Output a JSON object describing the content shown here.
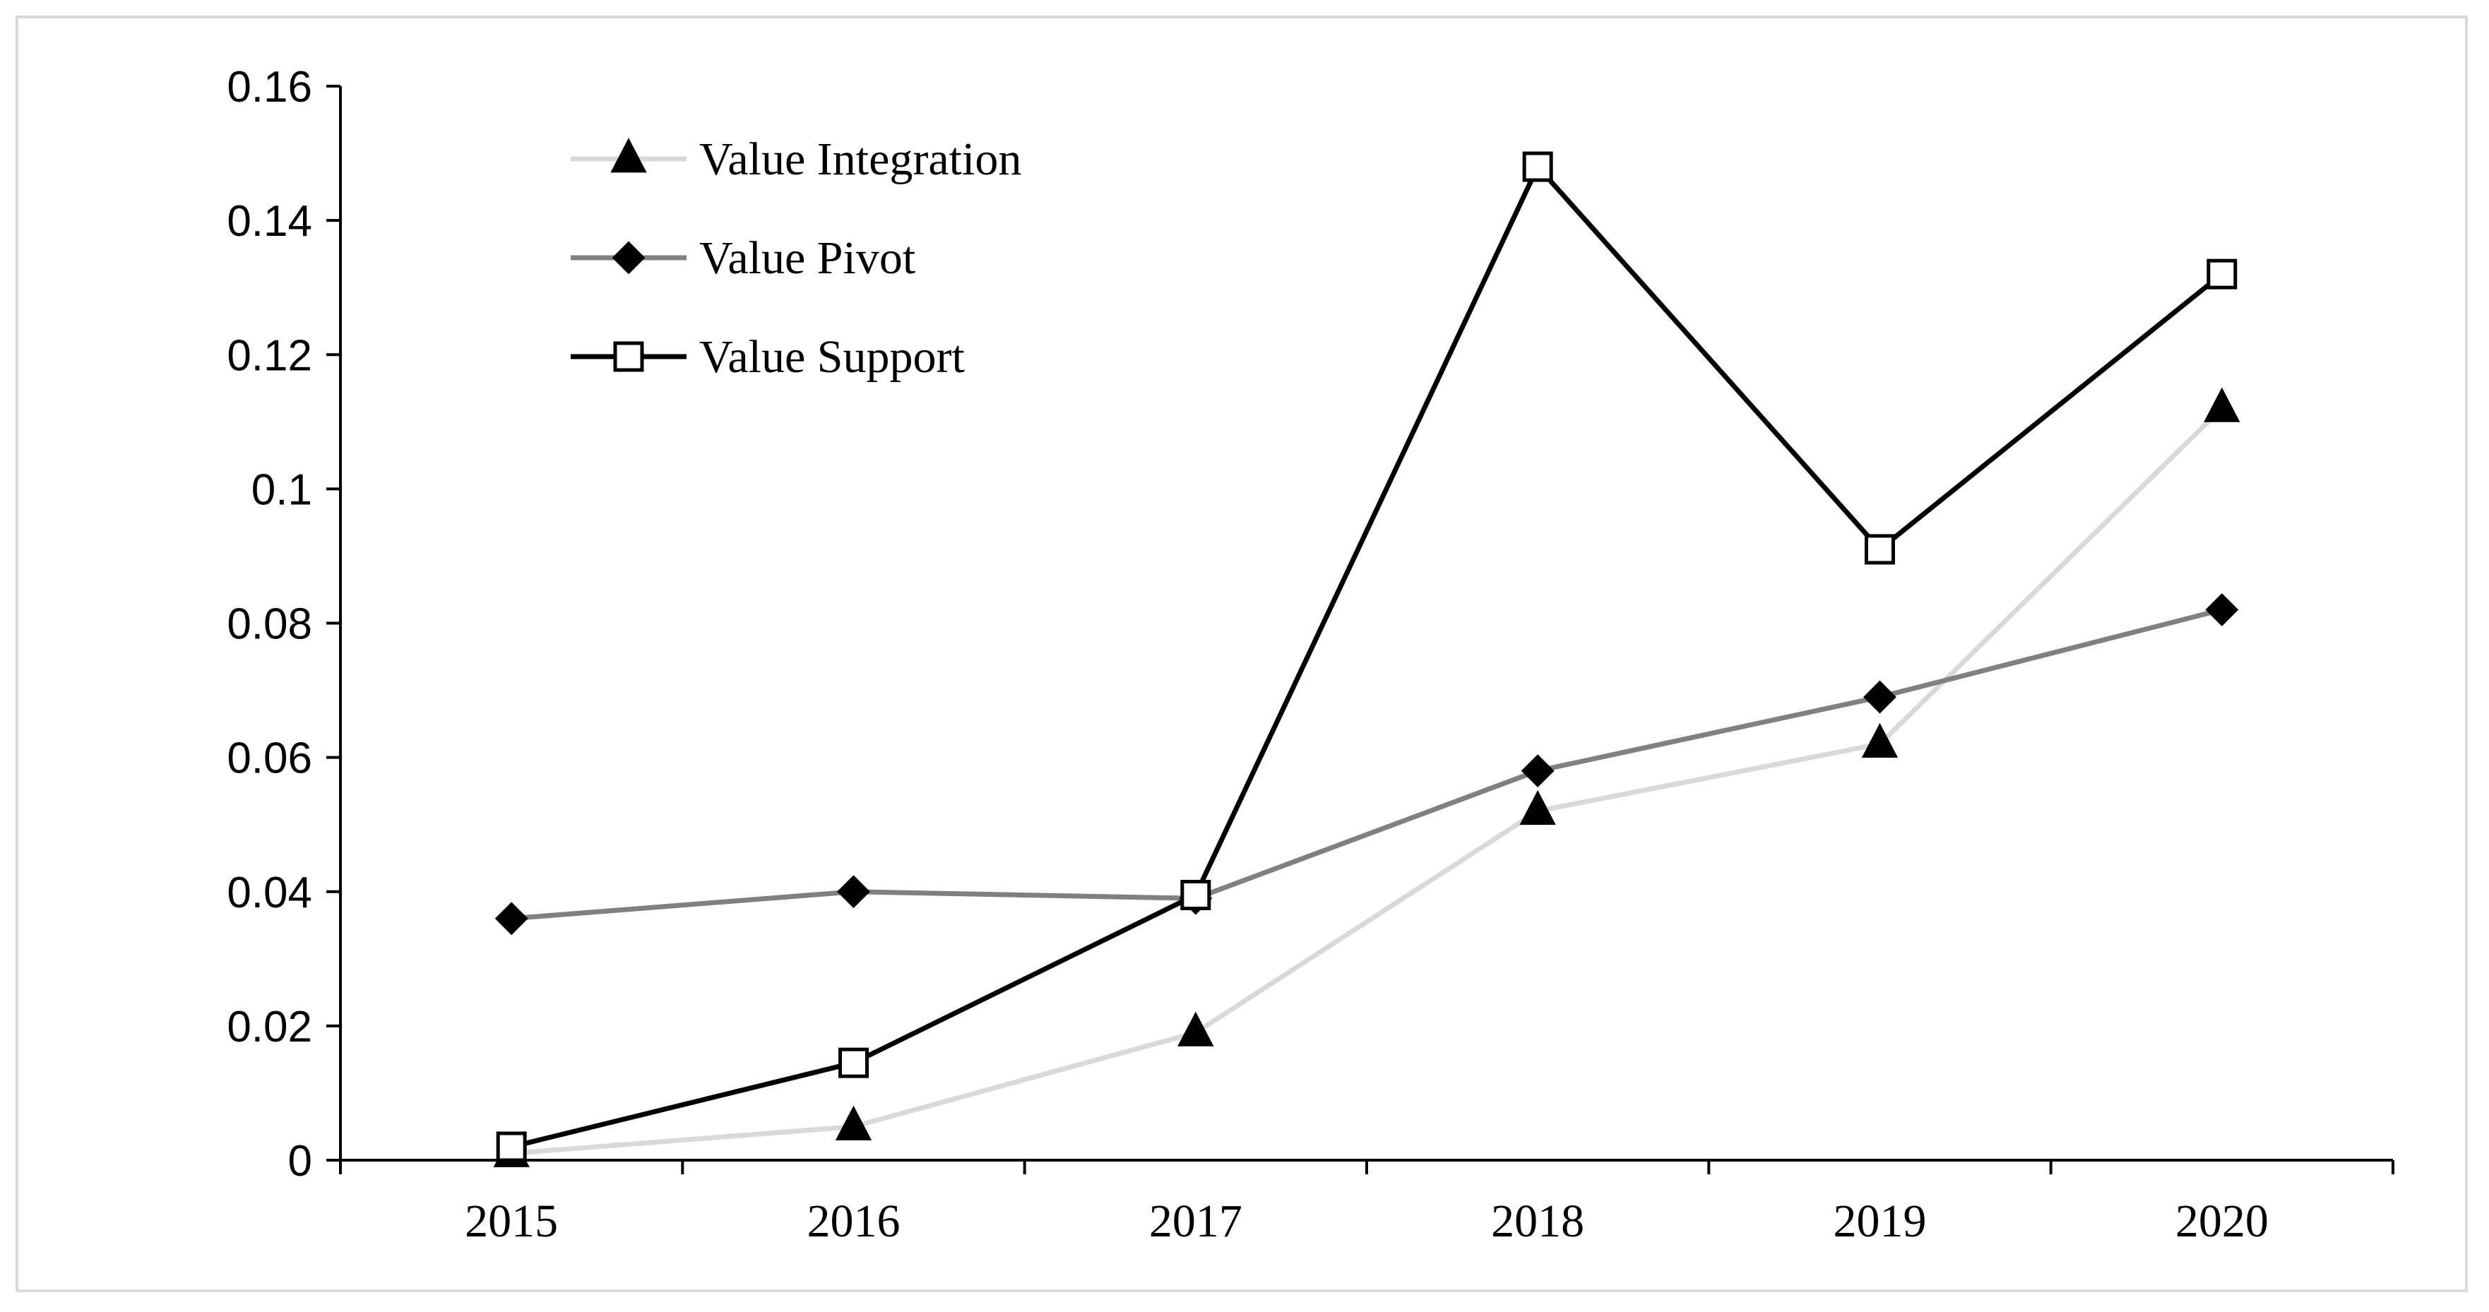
{
  "chart_data": {
    "type": "line",
    "title": "",
    "xlabel": "",
    "ylabel": "",
    "categories": [
      "2015",
      "2016",
      "2017",
      "2018",
      "2019",
      "2020"
    ],
    "ylim": [
      0,
      0.16
    ],
    "yticks": [
      0,
      0.02,
      0.04,
      0.06,
      0.08,
      0.1,
      0.12,
      0.14,
      0.16
    ],
    "ytick_labels": [
      "0",
      "0.02",
      "0.04",
      "0.06",
      "0.08",
      "0.1",
      "0.12",
      "0.14",
      "0.16"
    ],
    "grid": false,
    "legend_position": "top-left",
    "series": [
      {
        "name": "Value Integration",
        "marker": "triangle",
        "line_color": "#d9d9d9",
        "marker_fill": "#000000",
        "values": [
          0.001,
          0.005,
          0.019,
          0.052,
          0.062,
          0.112
        ]
      },
      {
        "name": "Value Pivot",
        "marker": "diamond",
        "line_color": "#808080",
        "marker_fill": "#000000",
        "values": [
          0.036,
          0.04,
          0.039,
          0.058,
          0.069,
          0.082
        ]
      },
      {
        "name": "Value Support",
        "marker": "square",
        "line_color": "#000000",
        "marker_fill": "#ffffff",
        "values": [
          0.002,
          0.0145,
          0.0395,
          0.148,
          0.091,
          0.132
        ]
      }
    ]
  }
}
